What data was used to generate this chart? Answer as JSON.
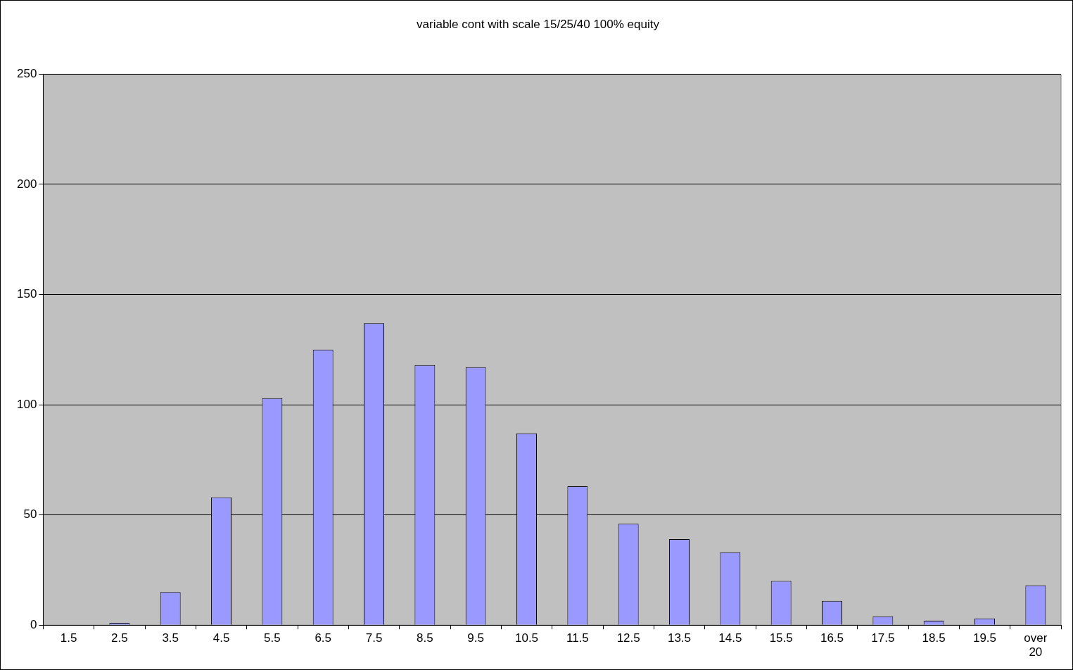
{
  "chart_data": {
    "type": "bar",
    "title": "variable cont with scale 15/25/40 100% equity",
    "categories": [
      "1.5",
      "2.5",
      "3.5",
      "4.5",
      "5.5",
      "6.5",
      "7.5",
      "8.5",
      "9.5",
      "10.5",
      "11.5",
      "12.5",
      "13.5",
      "14.5",
      "15.5",
      "16.5",
      "17.5",
      "18.5",
      "19.5",
      "over 20"
    ],
    "values": [
      0,
      1,
      15,
      58,
      103,
      125,
      137,
      118,
      117,
      87,
      63,
      46,
      39,
      33,
      20,
      11,
      4,
      2,
      3,
      18
    ],
    "color": "#9999ff",
    "ylim": [
      0,
      250
    ],
    "yticks": [
      0,
      50,
      100,
      150,
      200,
      250
    ],
    "grid": "y",
    "legend": false
  }
}
